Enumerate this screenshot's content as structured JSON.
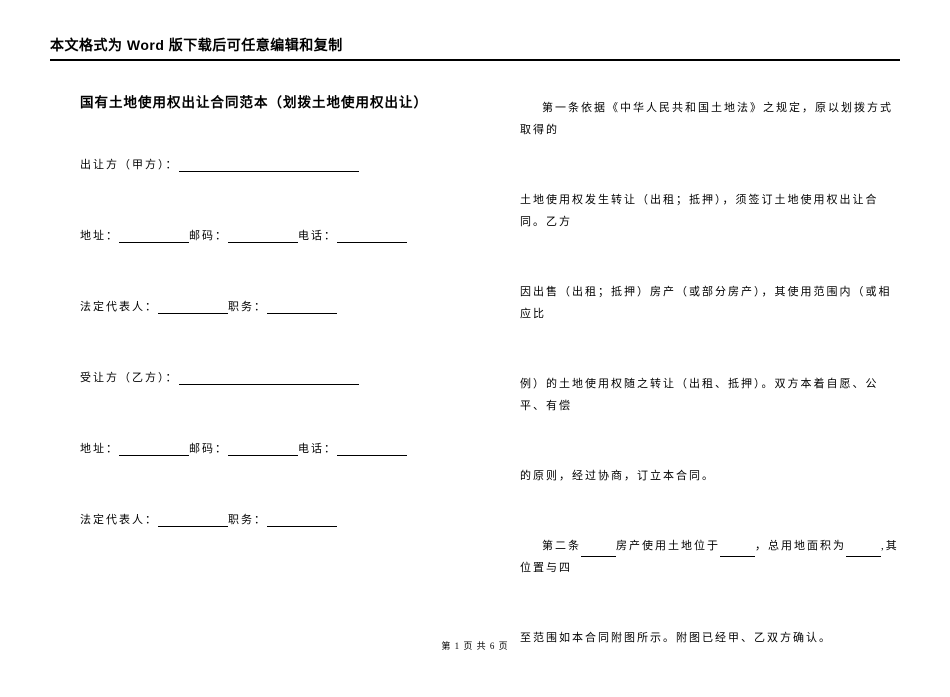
{
  "header": "本文格式为 Word 版下载后可任意编辑和复制",
  "title": "国有土地使用权出让合同范本（划拨土地使用权出让）",
  "left": {
    "line1_label": "出让方（甲方）：",
    "line2_addr": "地址：",
    "line2_post": "邮码：",
    "line2_tel": "电话：",
    "line3_rep": "法定代表人：",
    "line3_pos": "职务：",
    "line4_label": "受让方（乙方）：",
    "line5_addr": "地址：",
    "line5_post": "邮码：",
    "line5_tel": "电话：",
    "line6_rep": "法定代表人：",
    "line6_pos": "职务："
  },
  "right": {
    "p1": "第一条依据《中华人民共和国土地法》之规定，原以划拨方式取得的",
    "p2": "土地使用权发生转让（出租；抵押），须签订土地使用权出让合同。乙方",
    "p3": "因出售（出租；抵押）房产（或部分房产），其使用范围内（或相应比",
    "p4": "例）的土地使用权随之转让（出租、抵押）。双方本着自愿、公平、有偿",
    "p5": "的原则，经过协商，订立本合同。",
    "p6_pre": "第二条",
    "p6_mid1": "房产使用土地位于",
    "p6_mid2": "，总用地面积为",
    "p6_end": ",其位置与四",
    "p7": "至范围如本合同附图所示。附图已经甲、乙双方确认。"
  },
  "footer": "第 1 页 共 6 页"
}
